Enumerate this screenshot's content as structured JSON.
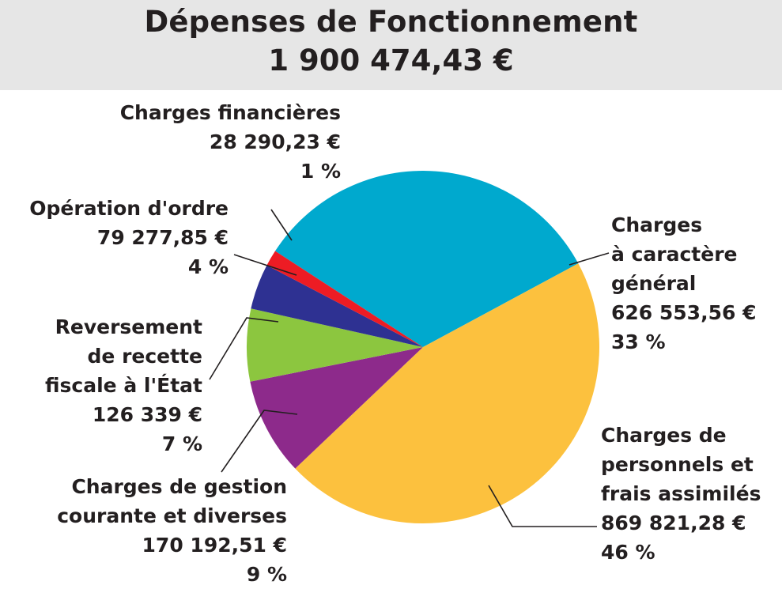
{
  "header": {
    "title": "Dépenses de Fonctionnement",
    "total": "1 900 474,43 €"
  },
  "chart_data": {
    "type": "pie",
    "title": "Dépenses de Fonctionnement",
    "subtitle": "1 900 474,43 €",
    "slices": [
      {
        "label": [
          "Charges",
          "à caractère",
          "général"
        ],
        "value": 626553.56,
        "value_text": "626 553,56 €",
        "percent_text": "33 %",
        "color": "#00a9ce"
      },
      {
        "label": [
          "Charges de",
          "personnels et",
          "frais assimilés"
        ],
        "value": 869821.28,
        "value_text": "869 821,28 €",
        "percent_text": "46 %",
        "color": "#fcc13e"
      },
      {
        "label": [
          "Charges de gestion",
          "courante et diverses"
        ],
        "value": 170192.51,
        "value_text": "170 192,51 €",
        "percent_text": "9 %",
        "color": "#8d2a8b"
      },
      {
        "label": [
          "Reversement",
          "de recette",
          "fiscale à l'État"
        ],
        "value": 126339,
        "value_text": "126 339 €",
        "percent_text": "7 %",
        "color": "#8cc63f"
      },
      {
        "label": [
          "Opération d'ordre"
        ],
        "value": 79277.85,
        "value_text": "79 277,85 €",
        "percent_text": "4 %",
        "color": "#2e3192"
      },
      {
        "label": [
          "Charges financières"
        ],
        "value": 28290.23,
        "value_text": "28 290,23 €",
        "percent_text": "1 %",
        "color": "#ed1c24"
      }
    ]
  }
}
